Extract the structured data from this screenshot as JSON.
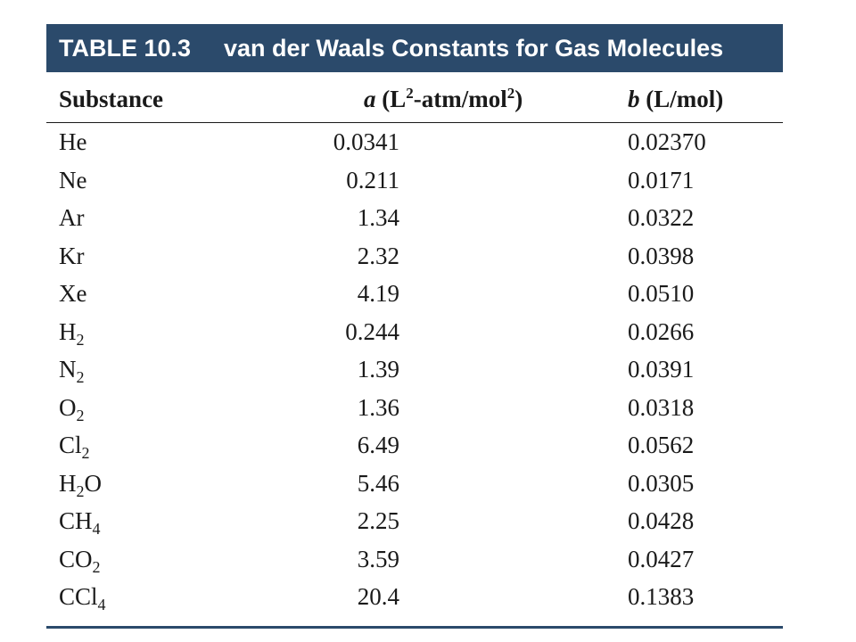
{
  "banner": {
    "label": "TABLE 10.3",
    "title": "van der Waals Constants for Gas Molecules"
  },
  "header": {
    "substance": "Substance",
    "a_symbol": "a",
    "a_unit_pre": "(L",
    "a_unit_sup1": "2",
    "a_unit_mid": "-atm/mol",
    "a_unit_sup2": "2",
    "a_unit_post": ")",
    "b_symbol": "b",
    "b_unit": "(L/mol)"
  },
  "rows": [
    {
      "sub_main": "He",
      "sub_num": "",
      "sub_tail": "",
      "a": "0.0341",
      "b": "0.02370"
    },
    {
      "sub_main": "Ne",
      "sub_num": "",
      "sub_tail": "",
      "a": "0.211",
      "b": "0.0171"
    },
    {
      "sub_main": "Ar",
      "sub_num": "",
      "sub_tail": "",
      "a": "1.34",
      "b": "0.0322"
    },
    {
      "sub_main": "Kr",
      "sub_num": "",
      "sub_tail": "",
      "a": "2.32",
      "b": "0.0398"
    },
    {
      "sub_main": "Xe",
      "sub_num": "",
      "sub_tail": "",
      "a": "4.19",
      "b": "0.0510"
    },
    {
      "sub_main": "H",
      "sub_num": "2",
      "sub_tail": "",
      "a": "0.244",
      "b": "0.0266"
    },
    {
      "sub_main": "N",
      "sub_num": "2",
      "sub_tail": "",
      "a": "1.39",
      "b": "0.0391"
    },
    {
      "sub_main": "O",
      "sub_num": "2",
      "sub_tail": "",
      "a": "1.36",
      "b": "0.0318"
    },
    {
      "sub_main": "Cl",
      "sub_num": "2",
      "sub_tail": "",
      "a": "6.49",
      "b": "0.0562"
    },
    {
      "sub_main": "H",
      "sub_num": "2",
      "sub_tail": "O",
      "a": "5.46",
      "b": "0.0305"
    },
    {
      "sub_main": "CH",
      "sub_num": "4",
      "sub_tail": "",
      "a": "2.25",
      "b": "0.0428"
    },
    {
      "sub_main": "CO",
      "sub_num": "2",
      "sub_tail": "",
      "a": "3.59",
      "b": "0.0427"
    },
    {
      "sub_main": "CCl",
      "sub_num": "4",
      "sub_tail": "",
      "a": "20.4",
      "b": "0.1383"
    }
  ]
}
